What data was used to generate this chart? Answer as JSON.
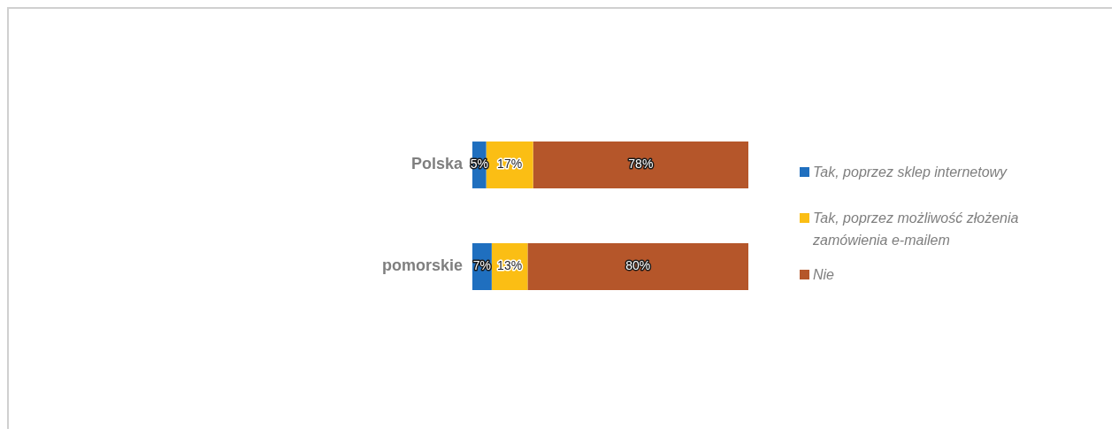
{
  "chart_data": {
    "type": "bar",
    "orientation": "horizontal",
    "stacked": true,
    "legend": "right",
    "grid": false,
    "tick_labels": "y",
    "categories": [
      "Polska",
      "pomorskie"
    ],
    "series": [
      {
        "name": "Tak, poprzez sklep internetowy",
        "color": "#1f6fbf",
        "values": [
          5,
          7
        ],
        "value_labels": [
          "5%",
          "7%"
        ]
      },
      {
        "name": "Tak, poprzez możliwość złożenia zamówienia e-mailem",
        "color": "#fbbe14",
        "values": [
          17,
          13
        ],
        "value_labels": [
          "17%",
          "13%"
        ]
      },
      {
        "name": "Nie",
        "color": "#b5562a",
        "values": [
          78,
          80
        ],
        "value_labels": [
          "78%",
          "80%"
        ]
      }
    ]
  }
}
